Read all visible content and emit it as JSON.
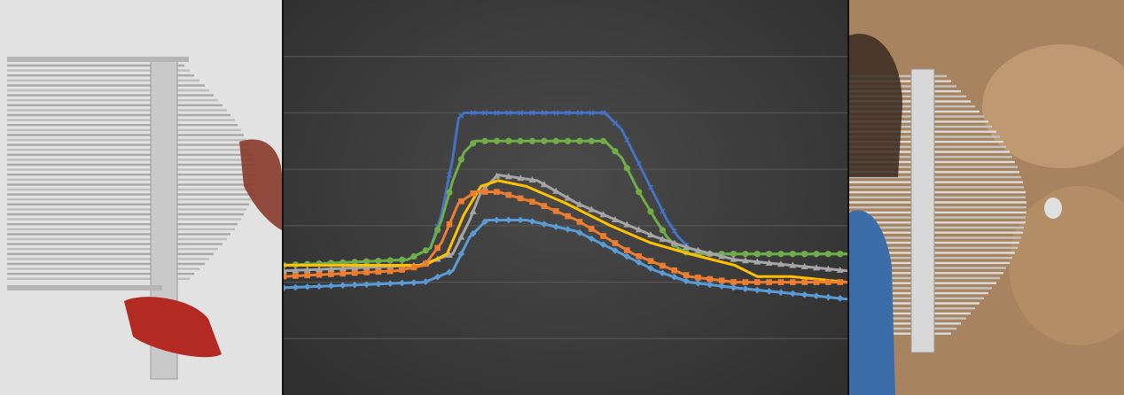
{
  "photos": {
    "left": {
      "icon": "heat-exchanger-tube-bundle-photo"
    },
    "right": {
      "icon": "heat-exchanger-tube-bundle-photo"
    }
  },
  "chart_data": {
    "type": "line",
    "title": "",
    "xlabel": "",
    "ylabel": "",
    "grid": true,
    "legend": "none",
    "xlim": [
      0,
      100
    ],
    "ylim": [
      0,
      7
    ],
    "series": [
      {
        "color": "#4472c4",
        "marker": "x",
        "points": [
          [
            0,
            2.3
          ],
          [
            22,
            2.4
          ],
          [
            26,
            2.6
          ],
          [
            28,
            3.2
          ],
          [
            30,
            4.2
          ],
          [
            31,
            4.9
          ],
          [
            32,
            5.0
          ],
          [
            57,
            5.0
          ],
          [
            60,
            4.7
          ],
          [
            62,
            4.3
          ],
          [
            64,
            3.9
          ],
          [
            66,
            3.5
          ],
          [
            68,
            3.1
          ],
          [
            70,
            2.8
          ],
          [
            72,
            2.6
          ],
          [
            75,
            2.5
          ],
          [
            100,
            2.5
          ]
        ]
      },
      {
        "color": "#70ad47",
        "marker": "circle",
        "points": [
          [
            0,
            2.3
          ],
          [
            22,
            2.4
          ],
          [
            26,
            2.6
          ],
          [
            28,
            3.1
          ],
          [
            30,
            3.8
          ],
          [
            32,
            4.3
          ],
          [
            34,
            4.5
          ],
          [
            57,
            4.5
          ],
          [
            60,
            4.2
          ],
          [
            63,
            3.6
          ],
          [
            66,
            3.1
          ],
          [
            68,
            2.8
          ],
          [
            70,
            2.6
          ],
          [
            72,
            2.5
          ],
          [
            100,
            2.5
          ]
        ]
      },
      {
        "color": "#a5a5a5",
        "marker": "triangle",
        "points": [
          [
            0,
            2.2
          ],
          [
            24,
            2.3
          ],
          [
            30,
            2.5
          ],
          [
            33,
            3.1
          ],
          [
            35,
            3.6
          ],
          [
            38,
            3.9
          ],
          [
            45,
            3.8
          ],
          [
            52,
            3.4
          ],
          [
            59,
            3.1
          ],
          [
            66,
            2.8
          ],
          [
            72,
            2.6
          ],
          [
            80,
            2.4
          ],
          [
            90,
            2.3
          ],
          [
            100,
            2.2
          ]
        ]
      },
      {
        "color": "#ffc000",
        "marker": "none",
        "points": [
          [
            0,
            2.3
          ],
          [
            25,
            2.3
          ],
          [
            29,
            2.5
          ],
          [
            32,
            3.2
          ],
          [
            35,
            3.7
          ],
          [
            38,
            3.8
          ],
          [
            43,
            3.7
          ],
          [
            50,
            3.4
          ],
          [
            58,
            3.0
          ],
          [
            65,
            2.7
          ],
          [
            72,
            2.5
          ],
          [
            80,
            2.3
          ],
          [
            84,
            2.1
          ],
          [
            90,
            2.1
          ],
          [
            100,
            2.0
          ]
        ]
      },
      {
        "color": "#ed7d31",
        "marker": "square",
        "points": [
          [
            0,
            2.1
          ],
          [
            20,
            2.2
          ],
          [
            25,
            2.3
          ],
          [
            28,
            2.7
          ],
          [
            31,
            3.4
          ],
          [
            34,
            3.6
          ],
          [
            38,
            3.6
          ],
          [
            45,
            3.4
          ],
          [
            52,
            3.1
          ],
          [
            57,
            2.8
          ],
          [
            62,
            2.5
          ],
          [
            67,
            2.3
          ],
          [
            72,
            2.1
          ],
          [
            80,
            2.0
          ],
          [
            90,
            2.0
          ],
          [
            100,
            2.0
          ]
        ]
      },
      {
        "color": "#5b9bd5",
        "marker": "diamond",
        "points": [
          [
            0,
            1.9
          ],
          [
            25,
            2.0
          ],
          [
            30,
            2.2
          ],
          [
            33,
            2.8
          ],
          [
            36,
            3.1
          ],
          [
            43,
            3.1
          ],
          [
            52,
            2.9
          ],
          [
            60,
            2.5
          ],
          [
            66,
            2.2
          ],
          [
            72,
            2.0
          ],
          [
            80,
            1.9
          ],
          [
            90,
            1.8
          ],
          [
            100,
            1.7
          ]
        ]
      }
    ]
  }
}
